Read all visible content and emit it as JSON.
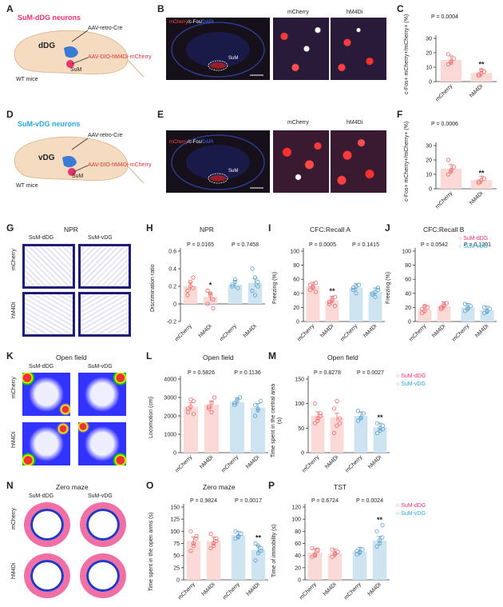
{
  "panels": {
    "A": {
      "label": "A",
      "title": "SuM-dDG neurons",
      "virus1": "AAV-retro-Cre",
      "virus2": "AAV-DIO-hM4Di-mCherry",
      "region1": "dDG",
      "region2": "SuM",
      "mice": "WT mice"
    },
    "B": {
      "label": "B",
      "stain_a": "mCherry",
      "stain_b": "/c-Fos/",
      "stain_c": "DAPI",
      "region": "SuM",
      "col1": "mCherry",
      "col2": "hM4Di"
    },
    "C": {
      "label": "C",
      "pval": "P = 0.0004",
      "sig": "**",
      "ylabel": "c-Fos+ mCherry+/mCherry+ (%)"
    },
    "D": {
      "label": "D",
      "title": "SuM-vDG neurons",
      "virus1": "AAV-retro-Cre",
      "virus2": "AAV-DIO-hM4Di-mCherry",
      "region1": "vDG",
      "region2": "SuM",
      "mice": "WT mice"
    },
    "E": {
      "label": "E",
      "stain_a": "mCherry",
      "stain_b": "/c-Fos/",
      "stain_c": "DAPI",
      "region": "SuM",
      "col1": "mCherry",
      "col2": "hM4Di"
    },
    "F": {
      "label": "F",
      "pval": "P = 0.0006",
      "sig": "**",
      "ylabel": "c-Fos+ mCherry+/mCherry+ (%)"
    },
    "G": {
      "label": "G",
      "title": "NPR",
      "col1": "SuM-dDG",
      "col2": "SuM-vDG",
      "row1": "mCherry",
      "row2": "hM4Di"
    },
    "H": {
      "label": "H",
      "title": "NPR",
      "p1": "P = 0.0165",
      "p2": "P = 0.7458",
      "sig": "*",
      "ylabel": "Discrimination ratio"
    },
    "I": {
      "label": "I",
      "title": "CFC:Recall A",
      "p1": "P = 0.0005",
      "p2": "P = 0.1415",
      "sig": "**",
      "ylabel": "Freezing (%)"
    },
    "J": {
      "label": "J",
      "title": "CFC:Recall B",
      "p1": "P = 0.0542",
      "p2": "P = 0.1201",
      "ylabel": "Freezing (%)"
    },
    "K": {
      "label": "K",
      "title": "Open field",
      "col1": "SuM-dDG",
      "col2": "SuM-vDG",
      "row1": "mCherry",
      "row2": "hM4Di"
    },
    "L": {
      "label": "L",
      "title": "Open field",
      "p1": "P = 0.5826",
      "p2": "P = 0.1136",
      "ylabel": "Locomotion (cm)"
    },
    "M": {
      "label": "M",
      "title": "Open field",
      "p1": "P = 0.8278",
      "p2": "P = 0.0027",
      "sig": "**",
      "ylabel": "Time spent in the central area (s)"
    },
    "N": {
      "label": "N",
      "title": "Zero maze",
      "col1": "SuM-dDG",
      "col2": "SuM-vDG",
      "row1": "mCherry",
      "row2": "hM4Di"
    },
    "O": {
      "label": "O",
      "title": "Zero maze",
      "p1": "P = 0.9824",
      "p2": "P = 0.0017",
      "sig": "**",
      "ylabel": "Time spent in the open arms (s)"
    },
    "P": {
      "label": "P",
      "title": "TST",
      "p1": "P = 0.6724",
      "p2": "P = 0.0024",
      "sig": "**",
      "ylabel": "Time of immobility (s)"
    }
  },
  "legend": {
    "dDG": "SuM-dDG",
    "vDG": "SuM-vDG"
  },
  "xcats": [
    "mCherry",
    "hM4Di"
  ],
  "colors": {
    "pink": "#e8356d",
    "cyan": "#2ba8d9",
    "barPink": "#fbd9d6",
    "barBlue": "#cfe4f1",
    "dotPink": "#ee6a6a",
    "dotBlue": "#5aa0cf"
  },
  "chart_data": [
    {
      "panel": "C",
      "type": "bar",
      "categories": [
        "mCherry",
        "hM4Di"
      ],
      "values": [
        15,
        6
      ],
      "ylim": [
        0,
        30
      ],
      "yticks": [
        0,
        10,
        20,
        30
      ],
      "dots": [
        [
          12,
          14,
          16,
          19,
          13
        ],
        [
          5,
          6,
          7,
          4,
          8
        ]
      ]
    },
    {
      "panel": "F",
      "type": "bar",
      "categories": [
        "mCherry",
        "hM4Di"
      ],
      "values": [
        14,
        6
      ],
      "ylim": [
        0,
        30
      ],
      "yticks": [
        0,
        10,
        20,
        30
      ],
      "dots": [
        [
          10,
          12,
          15,
          20,
          13
        ],
        [
          5,
          6,
          7,
          4
        ]
      ]
    },
    {
      "panel": "H",
      "type": "bar",
      "categories": [
        "mCherry",
        "hM4Di",
        "mCherry",
        "hM4Di"
      ],
      "groups": [
        "SuM-dDG",
        "SuM-dDG",
        "SuM-vDG",
        "SuM-vDG"
      ],
      "values": [
        0.2,
        0.08,
        0.22,
        0.24
      ],
      "ylim": [
        -0.2,
        0.6
      ],
      "yticks": [
        -0.2,
        0,
        0.2,
        0.4,
        0.6
      ],
      "dots": [
        [
          0.1,
          0.2,
          0.3,
          0.15,
          0.25,
          0.18
        ],
        [
          0.0,
          0.1,
          -0.05,
          0.15,
          0.12,
          0.05
        ],
        [
          0.2,
          0.25,
          0.18,
          0.22,
          0.28
        ],
        [
          0.15,
          0.3,
          0.25,
          0.4,
          0.1,
          0.2
        ]
      ]
    },
    {
      "panel": "I",
      "type": "bar",
      "categories": [
        "mCherry",
        "hM4Di",
        "mCherry",
        "hM4Di"
      ],
      "groups": [
        "SuM-dDG",
        "SuM-dDG",
        "SuM-vDG",
        "SuM-vDG"
      ],
      "values": [
        50,
        30,
        48,
        42
      ],
      "ylim": [
        0,
        100
      ],
      "yticks": [
        0,
        20,
        40,
        60,
        80,
        100
      ],
      "dots": [
        [
          45,
          50,
          55,
          52,
          48,
          42
        ],
        [
          25,
          30,
          35,
          28,
          32,
          22
        ],
        [
          45,
          50,
          52,
          48,
          40
        ],
        [
          38,
          42,
          45,
          40,
          35,
          48
        ]
      ]
    },
    {
      "panel": "J",
      "type": "bar",
      "categories": [
        "mCherry",
        "hM4Di",
        "mCherry",
        "hM4Di"
      ],
      "groups": [
        "SuM-dDG",
        "SuM-dDG",
        "SuM-vDG",
        "SuM-vDG"
      ],
      "values": [
        17,
        22,
        20,
        16
      ],
      "ylim": [
        0,
        100
      ],
      "yticks": [
        0,
        20,
        40,
        60,
        80,
        100
      ],
      "dots": [
        [
          12,
          15,
          20,
          18,
          22
        ],
        [
          18,
          22,
          26,
          20,
          24
        ],
        [
          15,
          20,
          22,
          25,
          18
        ],
        [
          12,
          15,
          18,
          20,
          14
        ]
      ]
    },
    {
      "panel": "L",
      "type": "bar",
      "categories": [
        "mCherry",
        "hM4Di",
        "mCherry",
        "hM4Di"
      ],
      "groups": [
        "SuM-dDG",
        "SuM-dDG",
        "SuM-vDG",
        "SuM-vDG"
      ],
      "values": [
        2500,
        2600,
        2750,
        2450
      ],
      "ylim": [
        0,
        4000
      ],
      "yticks": [
        0,
        1000,
        2000,
        3000,
        4000
      ],
      "dots": [
        [
          2200,
          2500,
          2800,
          2400,
          2900,
          2100
        ],
        [
          2400,
          2700,
          3000,
          2500,
          2200
        ],
        [
          2600,
          2800,
          3000,
          2700,
          2900
        ],
        [
          2000,
          2400,
          2800,
          2600,
          2300
        ]
      ]
    },
    {
      "panel": "M",
      "type": "bar",
      "categories": [
        "mCherry",
        "hM4Di",
        "mCherry",
        "hM4Di"
      ],
      "groups": [
        "SuM-dDG",
        "SuM-dDG",
        "SuM-vDG",
        "SuM-vDG"
      ],
      "values": [
        75,
        72,
        75,
        52
      ],
      "ylim": [
        0,
        150
      ],
      "yticks": [
        0,
        50,
        100,
        150
      ],
      "dots": [
        [
          60,
          70,
          80,
          100,
          65,
          75
        ],
        [
          40,
          55,
          70,
          90,
          105,
          60
        ],
        [
          65,
          70,
          80,
          85,
          72
        ],
        [
          40,
          45,
          55,
          60,
          50,
          48
        ]
      ]
    },
    {
      "panel": "O",
      "type": "bar",
      "categories": [
        "mCherry",
        "hM4Di",
        "mCherry",
        "hM4Di"
      ],
      "groups": [
        "SuM-dDG",
        "SuM-dDG",
        "SuM-vDG",
        "SuM-vDG"
      ],
      "values": [
        80,
        80,
        92,
        62
      ],
      "ylim": [
        0,
        150
      ],
      "yticks": [
        0,
        25,
        50,
        75,
        100,
        125,
        150
      ],
      "dots": [
        [
          60,
          70,
          85,
          100,
          75,
          90
        ],
        [
          65,
          75,
          85,
          95,
          70,
          80
        ],
        [
          85,
          90,
          95,
          100,
          88
        ],
        [
          40,
          55,
          65,
          75,
          70,
          60
        ]
      ]
    },
    {
      "panel": "P",
      "type": "bar",
      "categories": [
        "mCherry",
        "hM4Di",
        "mCherry",
        "hM4Di"
      ],
      "groups": [
        "SuM-dDG",
        "SuM-dDG",
        "SuM-vDG",
        "SuM-vDG"
      ],
      "values": [
        45,
        44,
        47,
        65
      ],
      "ylim": [
        0,
        120
      ],
      "yticks": [
        0,
        20,
        40,
        60,
        80,
        100,
        120
      ],
      "dots": [
        [
          38,
          42,
          48,
          52,
          40,
          50
        ],
        [
          38,
          42,
          46,
          50,
          44
        ],
        [
          42,
          45,
          50,
          48,
          46
        ],
        [
          55,
          60,
          70,
          80,
          65,
          90
        ]
      ]
    }
  ]
}
